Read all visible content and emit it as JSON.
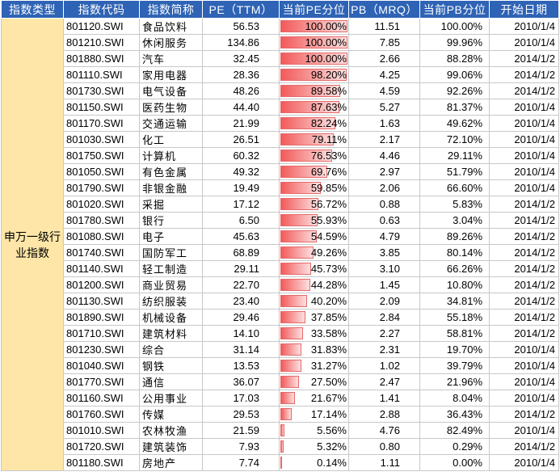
{
  "headers": [
    "指数类型",
    "指数代码",
    "指数简称",
    "PE（TTM）",
    "当前PE分位",
    "PB（MRQ）",
    "当前PB分位",
    "开始日期"
  ],
  "group_label": "申万一级行业指数",
  "rows": [
    {
      "code": "801120.SWI",
      "name": "食品饮料",
      "pe": "56.53",
      "pe_pct": "100.00%",
      "pe_pct_value": 100.0,
      "pb": "11.51",
      "pb_pct": "100.00%",
      "start": "2010/1/4"
    },
    {
      "code": "801210.SWI",
      "name": "休闲服务",
      "pe": "134.86",
      "pe_pct": "100.00%",
      "pe_pct_value": 100.0,
      "pb": "7.85",
      "pb_pct": "99.96%",
      "start": "2010/1/4"
    },
    {
      "code": "801880.SWI",
      "name": "汽车",
      "pe": "32.45",
      "pe_pct": "100.00%",
      "pe_pct_value": 100.0,
      "pb": "2.66",
      "pb_pct": "88.28%",
      "start": "2014/1/2"
    },
    {
      "code": "801110.SWI",
      "name": "家用电器",
      "pe": "28.36",
      "pe_pct": "98.20%",
      "pe_pct_value": 98.2,
      "pb": "4.25",
      "pb_pct": "99.06%",
      "start": "2014/1/2"
    },
    {
      "code": "801730.SWI",
      "name": "电气设备",
      "pe": "48.26",
      "pe_pct": "89.58%",
      "pe_pct_value": 89.58,
      "pb": "4.59",
      "pb_pct": "92.26%",
      "start": "2014/1/2"
    },
    {
      "code": "801150.SWI",
      "name": "医药生物",
      "pe": "44.40",
      "pe_pct": "87.63%",
      "pe_pct_value": 87.63,
      "pb": "5.27",
      "pb_pct": "81.37%",
      "start": "2010/1/4"
    },
    {
      "code": "801170.SWI",
      "name": "交通运输",
      "pe": "21.99",
      "pe_pct": "82.24%",
      "pe_pct_value": 82.24,
      "pb": "1.63",
      "pb_pct": "49.62%",
      "start": "2010/1/4"
    },
    {
      "code": "801030.SWI",
      "name": "化工",
      "pe": "26.51",
      "pe_pct": "79.11%",
      "pe_pct_value": 79.11,
      "pb": "2.17",
      "pb_pct": "72.10%",
      "start": "2010/1/4"
    },
    {
      "code": "801750.SWI",
      "name": "计算机",
      "pe": "60.32",
      "pe_pct": "76.53%",
      "pe_pct_value": 76.53,
      "pb": "4.46",
      "pb_pct": "29.11%",
      "start": "2010/1/4"
    },
    {
      "code": "801050.SWI",
      "name": "有色金属",
      "pe": "49.32",
      "pe_pct": "69.76%",
      "pe_pct_value": 69.76,
      "pb": "2.97",
      "pb_pct": "51.79%",
      "start": "2010/1/4"
    },
    {
      "code": "801790.SWI",
      "name": "非银金融",
      "pe": "19.49",
      "pe_pct": "59.85%",
      "pe_pct_value": 59.85,
      "pb": "2.06",
      "pb_pct": "66.60%",
      "start": "2010/1/4"
    },
    {
      "code": "801020.SWI",
      "name": "采掘",
      "pe": "17.12",
      "pe_pct": "56.72%",
      "pe_pct_value": 56.72,
      "pb": "0.88",
      "pb_pct": "5.83%",
      "start": "2014/1/2"
    },
    {
      "code": "801780.SWI",
      "name": "银行",
      "pe": "6.50",
      "pe_pct": "55.93%",
      "pe_pct_value": 55.93,
      "pb": "0.63",
      "pb_pct": "3.04%",
      "start": "2014/1/2"
    },
    {
      "code": "801080.SWI",
      "name": "电子",
      "pe": "45.63",
      "pe_pct": "54.59%",
      "pe_pct_value": 54.59,
      "pb": "4.79",
      "pb_pct": "89.26%",
      "start": "2014/1/2"
    },
    {
      "code": "801740.SWI",
      "name": "国防军工",
      "pe": "68.89",
      "pe_pct": "49.26%",
      "pe_pct_value": 49.26,
      "pb": "3.85",
      "pb_pct": "80.14%",
      "start": "2014/1/2"
    },
    {
      "code": "801140.SWI",
      "name": "轻工制造",
      "pe": "29.11",
      "pe_pct": "45.73%",
      "pe_pct_value": 45.73,
      "pb": "3.10",
      "pb_pct": "66.26%",
      "start": "2014/1/2"
    },
    {
      "code": "801200.SWI",
      "name": "商业贸易",
      "pe": "22.70",
      "pe_pct": "44.28%",
      "pe_pct_value": 44.28,
      "pb": "1.45",
      "pb_pct": "10.80%",
      "start": "2014/1/2"
    },
    {
      "code": "801130.SWI",
      "name": "纺织服装",
      "pe": "23.40",
      "pe_pct": "40.20%",
      "pe_pct_value": 40.2,
      "pb": "2.09",
      "pb_pct": "34.81%",
      "start": "2014/1/2"
    },
    {
      "code": "801890.SWI",
      "name": "机械设备",
      "pe": "29.46",
      "pe_pct": "37.85%",
      "pe_pct_value": 37.85,
      "pb": "2.84",
      "pb_pct": "55.18%",
      "start": "2014/1/2"
    },
    {
      "code": "801710.SWI",
      "name": "建筑材料",
      "pe": "14.10",
      "pe_pct": "33.58%",
      "pe_pct_value": 33.58,
      "pb": "2.27",
      "pb_pct": "58.81%",
      "start": "2014/1/2"
    },
    {
      "code": "801230.SWI",
      "name": "综合",
      "pe": "31.14",
      "pe_pct": "31.83%",
      "pe_pct_value": 31.83,
      "pb": "2.31",
      "pb_pct": "19.70%",
      "start": "2010/1/4"
    },
    {
      "code": "801040.SWI",
      "name": "钢铁",
      "pe": "13.53",
      "pe_pct": "31.27%",
      "pe_pct_value": 31.27,
      "pb": "1.02",
      "pb_pct": "39.79%",
      "start": "2010/1/4"
    },
    {
      "code": "801770.SWI",
      "name": "通信",
      "pe": "36.07",
      "pe_pct": "27.50%",
      "pe_pct_value": 27.5,
      "pb": "2.47",
      "pb_pct": "21.96%",
      "start": "2010/1/4"
    },
    {
      "code": "801160.SWI",
      "name": "公用事业",
      "pe": "17.03",
      "pe_pct": "21.67%",
      "pe_pct_value": 21.67,
      "pb": "1.41",
      "pb_pct": "8.04%",
      "start": "2010/1/4"
    },
    {
      "code": "801760.SWI",
      "name": "传媒",
      "pe": "29.53",
      "pe_pct": "17.14%",
      "pe_pct_value": 17.14,
      "pb": "2.88",
      "pb_pct": "36.43%",
      "start": "2014/1/2"
    },
    {
      "code": "801010.SWI",
      "name": "农林牧渔",
      "pe": "21.59",
      "pe_pct": "5.56%",
      "pe_pct_value": 5.56,
      "pb": "4.76",
      "pb_pct": "82.49%",
      "start": "2010/1/4"
    },
    {
      "code": "801720.SWI",
      "name": "建筑装饰",
      "pe": "7.93",
      "pe_pct": "5.32%",
      "pe_pct_value": 5.32,
      "pb": "0.80",
      "pb_pct": "0.29%",
      "start": "2014/1/2"
    },
    {
      "code": "801180.SWI",
      "name": "房地产",
      "pe": "7.74",
      "pe_pct": "0.14%",
      "pe_pct_value": 0.14,
      "pb": "1.11",
      "pb_pct": "0.00%",
      "start": "2010/1/4"
    }
  ],
  "colors": {
    "header_bg": "#2e63b5",
    "group_bg": "#fde6a7",
    "bar_red": "#f25a5a"
  }
}
